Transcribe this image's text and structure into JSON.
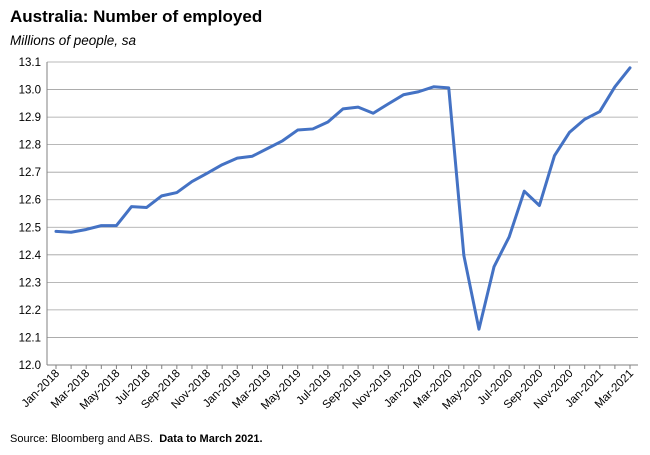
{
  "title": "Australia: Number of employed",
  "subtitle": "Millions of people, sa",
  "source": {
    "text": "Source: Bloomberg and ABS.",
    "bold": "Data to March 2021."
  },
  "colors": {
    "line": "#4472C4",
    "grid": "#a0a0a0",
    "axis": "#808080"
  },
  "chart_data": {
    "type": "line",
    "title": "Australia: Number of employed",
    "subtitle": "Millions of people, sa",
    "xlabel": "",
    "ylabel": "",
    "ylim": [
      12.0,
      13.1
    ],
    "yticks": [
      "12.0",
      "12.1",
      "12.2",
      "12.3",
      "12.4",
      "12.5",
      "12.6",
      "12.7",
      "12.8",
      "12.9",
      "13.0",
      "13.1"
    ],
    "grid": true,
    "legend": "none",
    "x": [
      "Jan-2018",
      "Feb-2018",
      "Mar-2018",
      "Apr-2018",
      "May-2018",
      "Jun-2018",
      "Jul-2018",
      "Aug-2018",
      "Sep-2018",
      "Oct-2018",
      "Nov-2018",
      "Dec-2018",
      "Jan-2019",
      "Feb-2019",
      "Mar-2019",
      "Apr-2019",
      "May-2019",
      "Jun-2019",
      "Jul-2019",
      "Aug-2019",
      "Sep-2019",
      "Oct-2019",
      "Nov-2019",
      "Dec-2019",
      "Jan-2020",
      "Feb-2020",
      "Mar-2020",
      "Apr-2020",
      "May-2020",
      "Jun-2020",
      "Jul-2020",
      "Aug-2020",
      "Sep-2020",
      "Oct-2020",
      "Nov-2020",
      "Dec-2020",
      "Jan-2021",
      "Feb-2021",
      "Mar-2021"
    ],
    "xtick_labels": [
      "Jan-2018",
      "Mar-2018",
      "May-2018",
      "Jul-2018",
      "Sep-2018",
      "Nov-2018",
      "Jan-2019",
      "Mar-2019",
      "May-2019",
      "Jul-2019",
      "Sep-2019",
      "Nov-2019",
      "Jan-2020",
      "Mar-2020",
      "May-2020",
      "Jul-2020",
      "Sep-2020",
      "Nov-2020",
      "Jan-2021",
      "Mar-2021"
    ],
    "series": [
      {
        "name": "",
        "values": [
          12.485,
          12.482,
          12.492,
          12.506,
          12.506,
          12.575,
          12.572,
          12.614,
          12.626,
          12.666,
          12.696,
          12.727,
          12.751,
          12.758,
          12.786,
          12.814,
          12.853,
          12.857,
          12.882,
          12.93,
          12.936,
          12.914,
          12.948,
          12.981,
          12.992,
          13.01,
          13.006,
          12.398,
          12.13,
          12.357,
          12.465,
          12.631,
          12.579,
          12.76,
          12.845,
          12.892,
          12.92,
          13.01,
          13.079
        ]
      }
    ]
  }
}
